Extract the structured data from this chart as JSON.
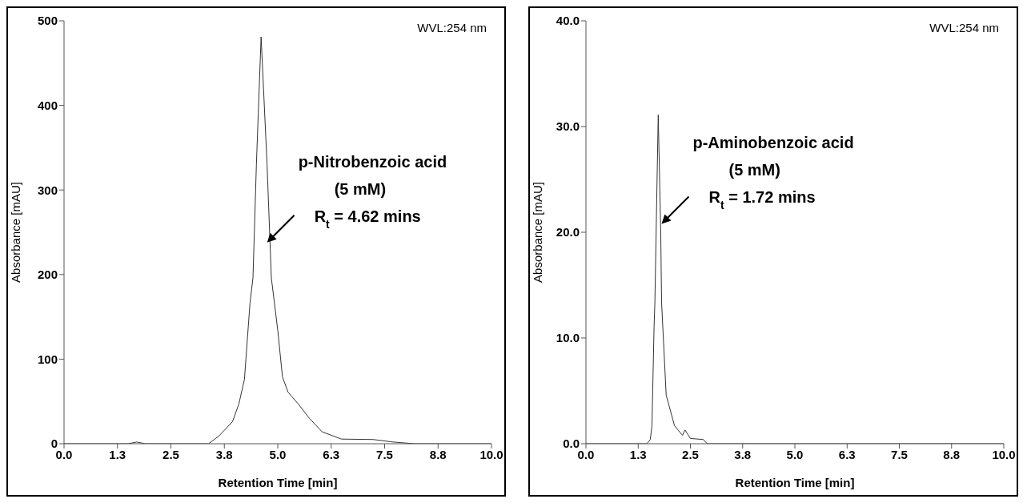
{
  "chart_data": [
    {
      "type": "line",
      "xlabel": "Retention Time [min]",
      "ylabel": "Absorbance [mAU]",
      "color": "#333333",
      "marker": "none",
      "x": [
        0,
        1.5,
        1.7,
        1.9,
        3.14,
        3.38,
        3.62,
        3.94,
        4.09,
        4.22,
        4.35,
        4.42,
        4.5,
        4.61,
        4.75,
        4.85,
        5.0,
        5.11,
        5.24,
        5.48,
        5.74,
        6.04,
        6.49,
        7.23,
        7.7,
        8.2,
        10
      ],
      "values": [
        0,
        0,
        2,
        0,
        0,
        0,
        9,
        26,
        47,
        76,
        166,
        196,
        330,
        481,
        330,
        196,
        134,
        79,
        61,
        47,
        30,
        14,
        5.5,
        5,
        2,
        0,
        0
      ],
      "xlim": [
        0,
        10
      ],
      "xticks": [
        {
          "value": 0,
          "label": "0.0"
        },
        {
          "value": 1.25,
          "label": "1.3"
        },
        {
          "value": 2.5,
          "label": "2.5"
        },
        {
          "value": 3.75,
          "label": "3.8"
        },
        {
          "value": 5,
          "label": "5.0"
        },
        {
          "value": 6.25,
          "label": "6.3"
        },
        {
          "value": 7.5,
          "label": "7.5"
        },
        {
          "value": 8.75,
          "label": "8.8"
        },
        {
          "value": 10,
          "label": "10.0"
        }
      ],
      "ylim": [
        0,
        500
      ],
      "yticks": [
        0,
        100,
        200,
        300,
        400,
        500
      ],
      "annotations": [
        "WVL:254 nm",
        {
          "text": "p-Nitrobenzoic acid\n(5 mM)\nR$_{t}$ = 4.62 mins",
          "x": 4.75,
          "y": 238
        }
      ]
    },
    {
      "type": "line",
      "xlabel": "Retention Time [min]",
      "ylabel": "Absorbance [mAU]",
      "color": "#333333",
      "marker": "none",
      "x": [
        0,
        1.46,
        1.54,
        1.58,
        1.63,
        1.65,
        1.73,
        1.79,
        1.81,
        1.92,
        2.12,
        2.31,
        2.37,
        2.5,
        2.81,
        2.9,
        10
      ],
      "values": [
        0,
        0,
        0.4,
        1.7,
        11,
        13.4,
        31.1,
        20,
        13.4,
        4.6,
        1.7,
        0.8,
        1.3,
        0.5,
        0.4,
        0,
        0
      ],
      "xlim": [
        0,
        10
      ],
      "xticks": [
        {
          "value": 0,
          "label": "0.0"
        },
        {
          "value": 1.25,
          "label": "1.3"
        },
        {
          "value": 2.5,
          "label": "2.5"
        },
        {
          "value": 3.75,
          "label": "3.8"
        },
        {
          "value": 5,
          "label": "5.0"
        },
        {
          "value": 6.25,
          "label": "6.3"
        },
        {
          "value": 7.5,
          "label": "7.5"
        },
        {
          "value": 8.75,
          "label": "8.8"
        },
        {
          "value": 10,
          "label": "10.0"
        }
      ],
      "ylim": [
        0,
        40
      ],
      "yticks": [
        {
          "value": 0,
          "label": "0.0"
        },
        {
          "value": 10,
          "label": "10.0"
        },
        {
          "value": 20,
          "label": "20.0"
        },
        {
          "value": 30,
          "label": "30.0"
        },
        {
          "value": 40,
          "label": "40.0"
        }
      ],
      "annotations": [
        "WVL:254 nm",
        {
          "text": "p-Aminobenzoic acid\n(5 mM)\nR$_{t}$ = 1.72 mins",
          "x": 1.81,
          "y": 20.8
        }
      ]
    }
  ]
}
